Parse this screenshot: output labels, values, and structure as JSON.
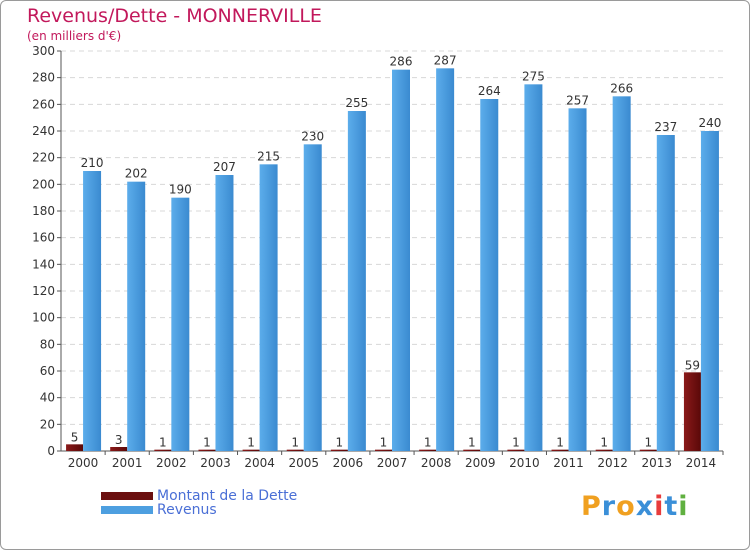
{
  "chart_data": {
    "type": "bar",
    "title": "Revenus/Dette - MONNERVILLE",
    "subtitle": "(en milliers d'€)",
    "categories": [
      "2000",
      "2001",
      "2002",
      "2003",
      "2004",
      "2005",
      "2006",
      "2007",
      "2008",
      "2009",
      "2010",
      "2011",
      "2012",
      "2013",
      "2014"
    ],
    "series": [
      {
        "name": "Montant de la Dette",
        "color": "#6b0f0f",
        "values": [
          5,
          3,
          1,
          1,
          1,
          1,
          1,
          1,
          1,
          1,
          1,
          1,
          1,
          1,
          59
        ]
      },
      {
        "name": "Revenus",
        "color": "#4d9fe0",
        "values": [
          210,
          202,
          190,
          207,
          215,
          230,
          255,
          286,
          287,
          264,
          275,
          257,
          266,
          237,
          240
        ]
      }
    ],
    "ylim": [
      0,
      300
    ],
    "yticks": [
      0,
      20,
      40,
      60,
      80,
      100,
      120,
      140,
      160,
      180,
      200,
      220,
      240,
      260,
      280,
      300
    ],
    "grid": true,
    "legend": "bottom-left"
  },
  "branding": {
    "logo_letters": [
      "P",
      "r",
      "o",
      "x",
      "i",
      "t",
      "i"
    ],
    "logo_colors": [
      "#f0a020",
      "#3a8fd8",
      "#f0a020",
      "#3a8fd8",
      "#e83c3c",
      "#3a8fd8",
      "#60b040"
    ]
  }
}
